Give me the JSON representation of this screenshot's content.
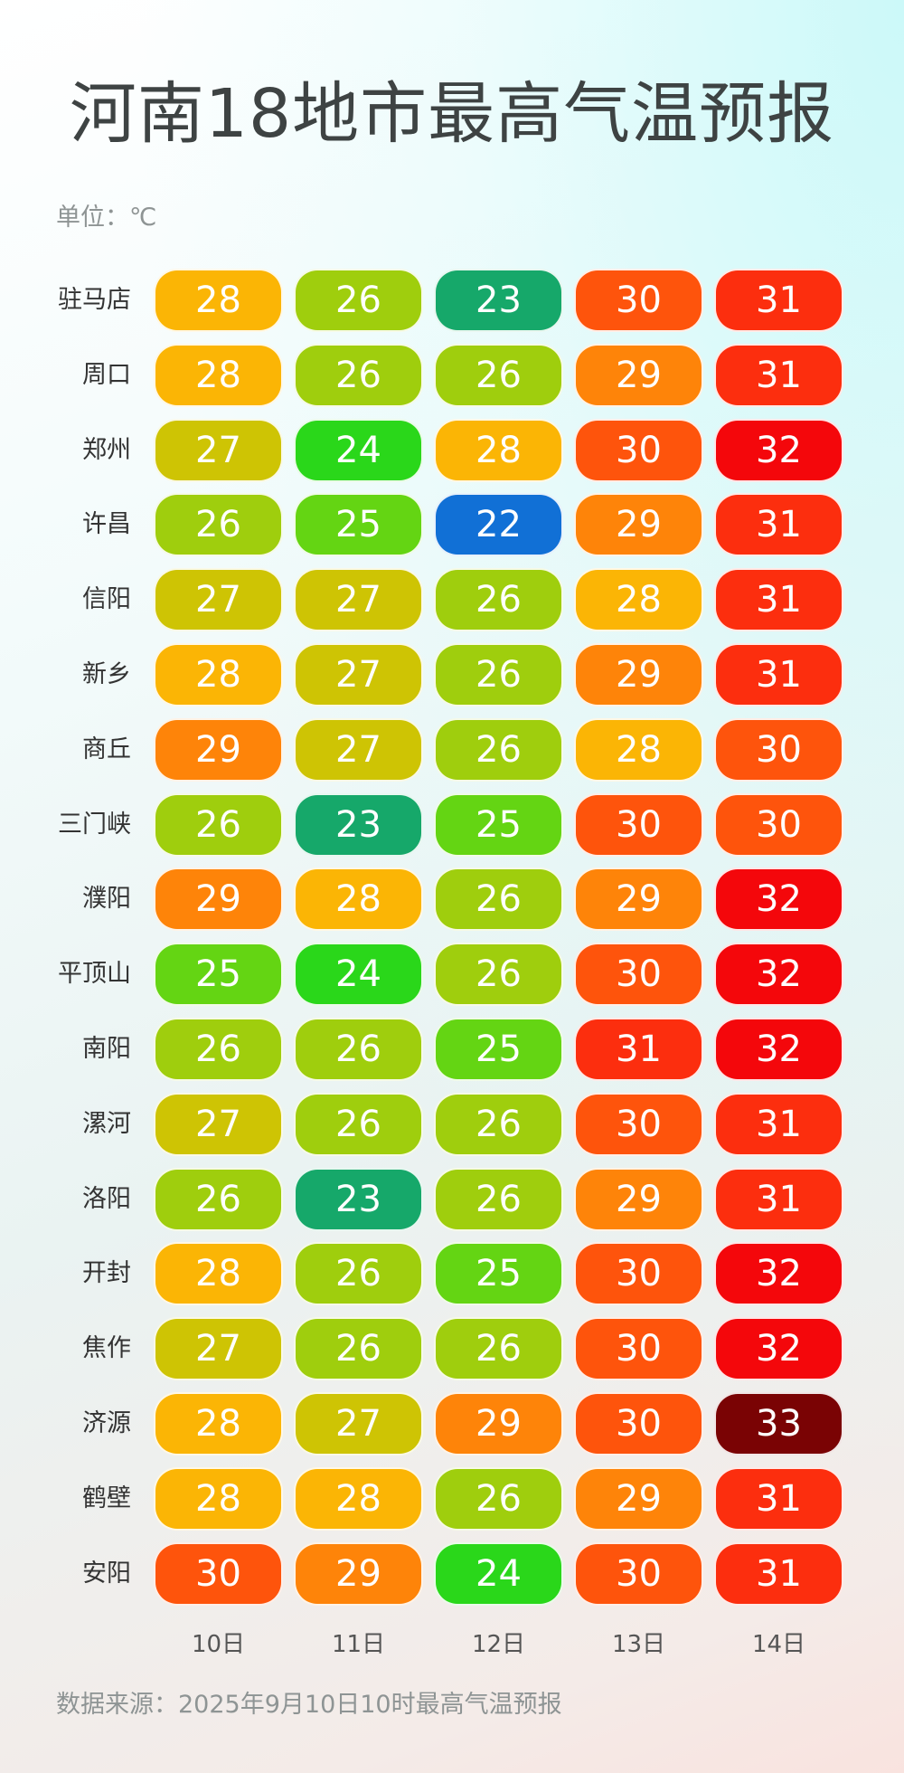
{
  "title": "河南18地市最高气温预报",
  "unit": "单位：℃",
  "source": "数据来源：2025年9月10日10时最高气温预报",
  "colors": {
    "22": "#1170d6",
    "23": "#16a86a",
    "24": "#2ad71a",
    "25": "#64d513",
    "26": "#9fce0d",
    "27": "#cec404",
    "28": "#fbb505",
    "29": "#fe8409",
    "30": "#fe540c",
    "31": "#fc2e0e",
    "32": "#f4070b",
    "33": "#7a0304"
  },
  "chart_data": {
    "type": "table",
    "title": "河南18地市最高气温预报",
    "unit": "℃",
    "days": [
      "10日",
      "11日",
      "12日",
      "13日",
      "14日"
    ],
    "cities": [
      "驻马店",
      "周口",
      "郑州",
      "许昌",
      "信阳",
      "新乡",
      "商丘",
      "三门峡",
      "濮阳",
      "平顶山",
      "南阳",
      "漯河",
      "洛阳",
      "开封",
      "焦作",
      "济源",
      "鹤壁",
      "安阳"
    ],
    "values": [
      [
        28,
        26,
        23,
        30,
        31
      ],
      [
        28,
        26,
        26,
        29,
        31
      ],
      [
        27,
        24,
        28,
        30,
        32
      ],
      [
        26,
        25,
        22,
        29,
        31
      ],
      [
        27,
        27,
        26,
        28,
        31
      ],
      [
        28,
        27,
        26,
        29,
        31
      ],
      [
        29,
        27,
        26,
        28,
        30
      ],
      [
        26,
        23,
        25,
        30,
        30
      ],
      [
        29,
        28,
        26,
        29,
        32
      ],
      [
        25,
        24,
        26,
        30,
        32
      ],
      [
        26,
        26,
        25,
        31,
        32
      ],
      [
        27,
        26,
        26,
        30,
        31
      ],
      [
        26,
        23,
        26,
        29,
        31
      ],
      [
        28,
        26,
        25,
        30,
        32
      ],
      [
        27,
        26,
        26,
        30,
        32
      ],
      [
        28,
        27,
        29,
        30,
        33
      ],
      [
        28,
        28,
        26,
        29,
        31
      ],
      [
        30,
        29,
        24,
        30,
        31
      ]
    ]
  }
}
